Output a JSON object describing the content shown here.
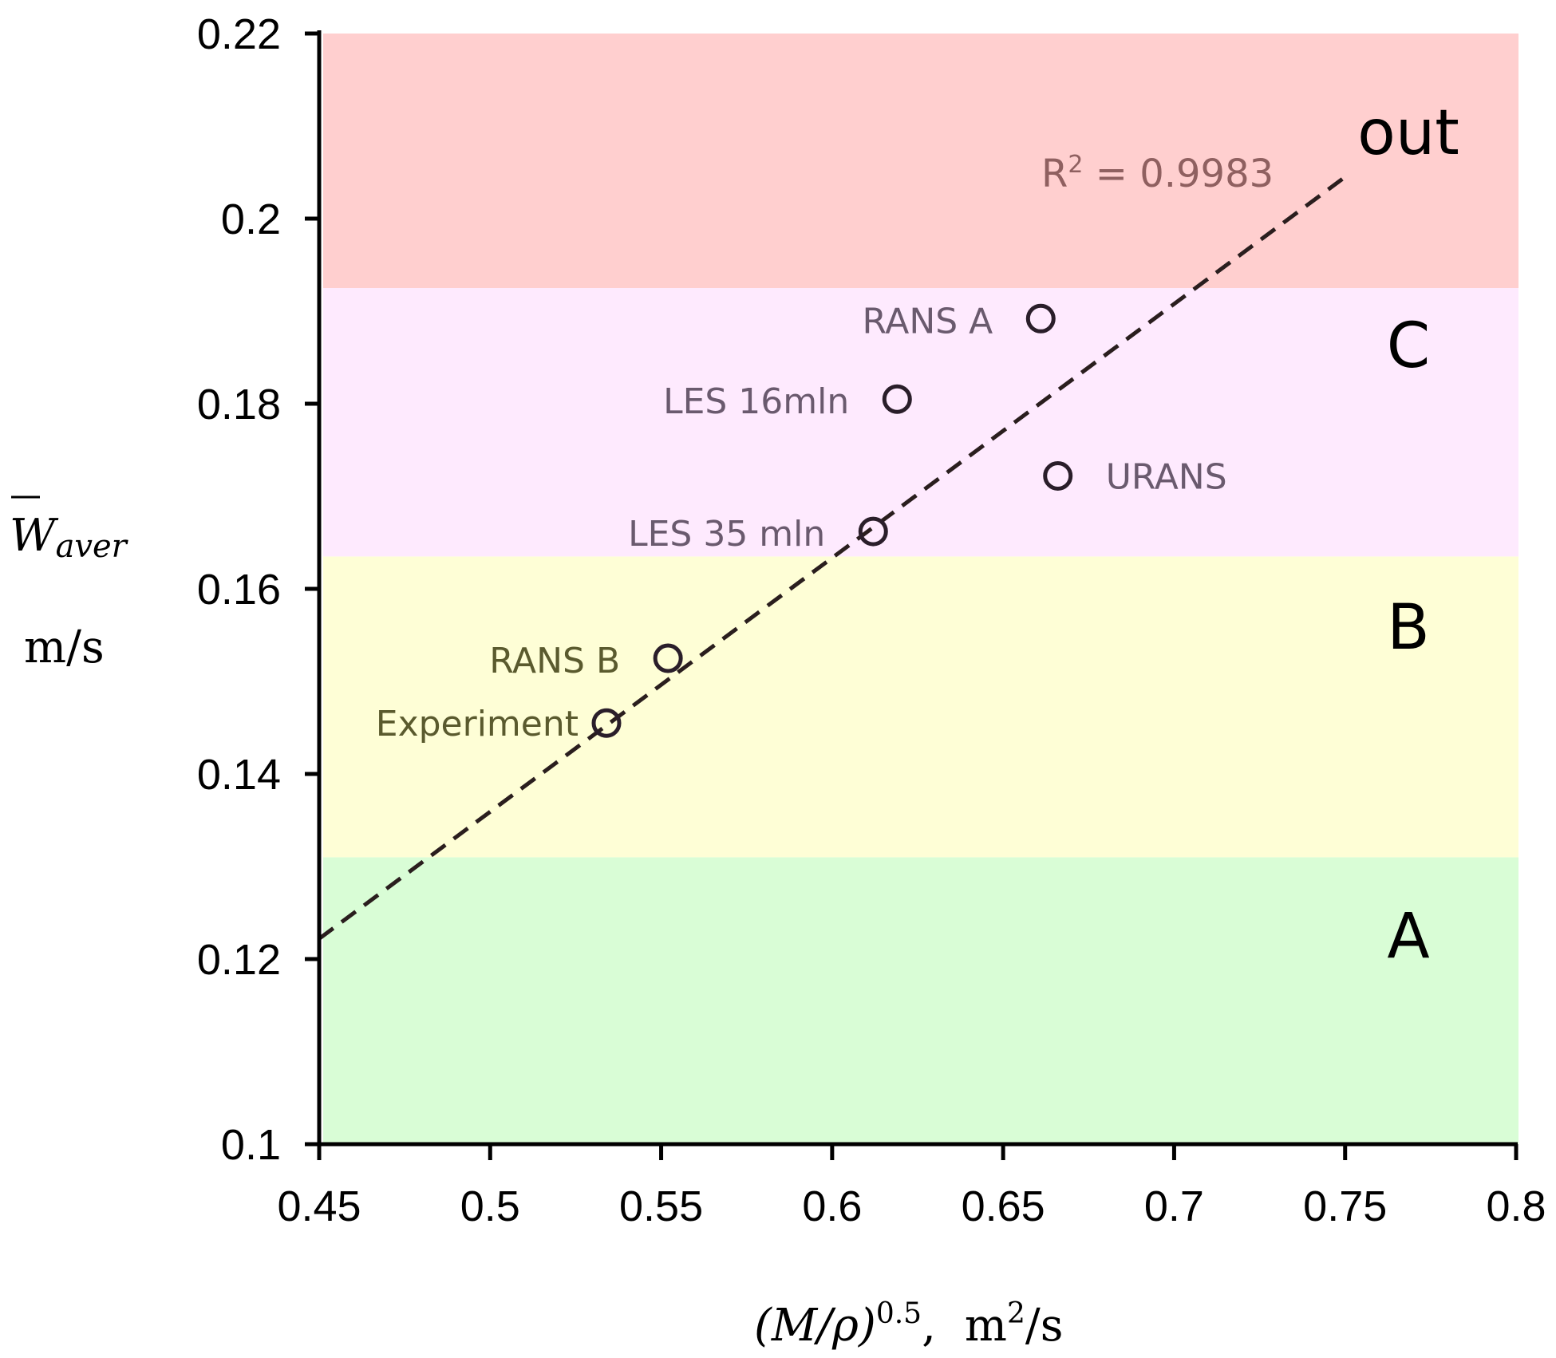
{
  "chart_data": {
    "type": "scatter",
    "xlim": [
      0.45,
      0.8
    ],
    "ylim": [
      0.1,
      0.22
    ],
    "x_ticks": [
      "0.45",
      "0.5",
      "0.55",
      "0.6",
      "0.65",
      "0.7",
      "0.75",
      "0.8"
    ],
    "x_tick_values": [
      0.45,
      0.5,
      0.55,
      0.6,
      0.65,
      0.7,
      0.75,
      0.8
    ],
    "y_ticks": [
      "0.1",
      "0.12",
      "0.14",
      "0.16",
      "0.18",
      "0.2",
      "0.22"
    ],
    "y_tick_values": [
      0.1,
      0.12,
      0.14,
      0.16,
      0.18,
      0.2,
      0.22
    ],
    "xlabel": {
      "expr": "(M/ρ)",
      "exponent": "0.5",
      "sep": ",",
      "unit": "m",
      "unit_exp": "2",
      "unit_tail": "/s"
    },
    "ylabel": {
      "symbol": "W",
      "subscript": "aver",
      "unit": "m/s"
    },
    "zones": [
      {
        "label": "A",
        "y_from": 0.1,
        "y_to": 0.131,
        "color": "#d9fdd6"
      },
      {
        "label": "B",
        "y_from": 0.131,
        "y_to": 0.1635,
        "color": "#fefed6"
      },
      {
        "label": "C",
        "y_from": 0.1635,
        "y_to": 0.1925,
        "color": "#feeafe"
      },
      {
        "label": "out",
        "y_from": 0.1925,
        "y_to": 0.22,
        "color": "#ffcfcf"
      }
    ],
    "points": [
      {
        "name": "Experiment",
        "x": 0.534,
        "y": 0.1455,
        "color": "#5a5a2e"
      },
      {
        "name": "RANS B",
        "x": 0.552,
        "y": 0.1525,
        "color": "#5a5a2e"
      },
      {
        "name": "LES 35 mln",
        "x": 0.612,
        "y": 0.1662,
        "color": "#6a5a6e"
      },
      {
        "name": "URANS",
        "x": 0.666,
        "y": 0.1722,
        "color": "#6a5a6e"
      },
      {
        "name": "LES 16mln",
        "x": 0.619,
        "y": 0.1805,
        "color": "#6a5a6e"
      },
      {
        "name": "RANS A",
        "x": 0.661,
        "y": 0.1892,
        "color": "#6a5a6e"
      }
    ],
    "trendline": {
      "x": [
        0.45,
        0.75
      ],
      "y": [
        0.1222,
        0.2045
      ],
      "style": "dashed",
      "r_squared_label": "R",
      "r_squared_exp": "2",
      "r_squared_value": " = 0.9983"
    }
  }
}
